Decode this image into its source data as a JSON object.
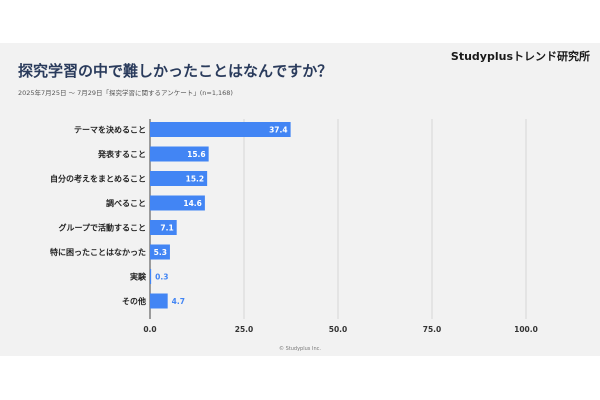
{
  "brand": "Studyplusトレンド研究所",
  "title": "探究学習の中で難しかったことはなんですか？",
  "subtitle": "2025年7月25日 ～ 7月29日「探究学習に関するアンケート」(n=1,168)",
  "copyright": "© Studyplus Inc.",
  "colors": {
    "bar": "#4285f4",
    "title": "#2a3b5c",
    "background": "#f2f2f2",
    "grid": "#cfcfcf"
  },
  "chart_data": {
    "type": "bar",
    "orientation": "horizontal",
    "categories": [
      "テーマを決めること",
      "発表すること",
      "自分の考えをまとめること",
      "調べること",
      "グループで活動すること",
      "特に困ったことはなかった",
      "実験",
      "その他"
    ],
    "values": [
      37.4,
      15.6,
      15.2,
      14.6,
      7.1,
      5.3,
      0.3,
      4.7
    ],
    "value_labels": [
      "37.4",
      "15.6",
      "15.2",
      "14.6",
      "7.1",
      "5.3",
      "0.3",
      "4.7"
    ],
    "xlim": [
      0,
      100
    ],
    "xticks": [
      0,
      25,
      50,
      75,
      100
    ],
    "xtick_labels": [
      "0.0",
      "25.0",
      "50.0",
      "75.0",
      "100.0"
    ],
    "grid": true,
    "legend": false
  }
}
